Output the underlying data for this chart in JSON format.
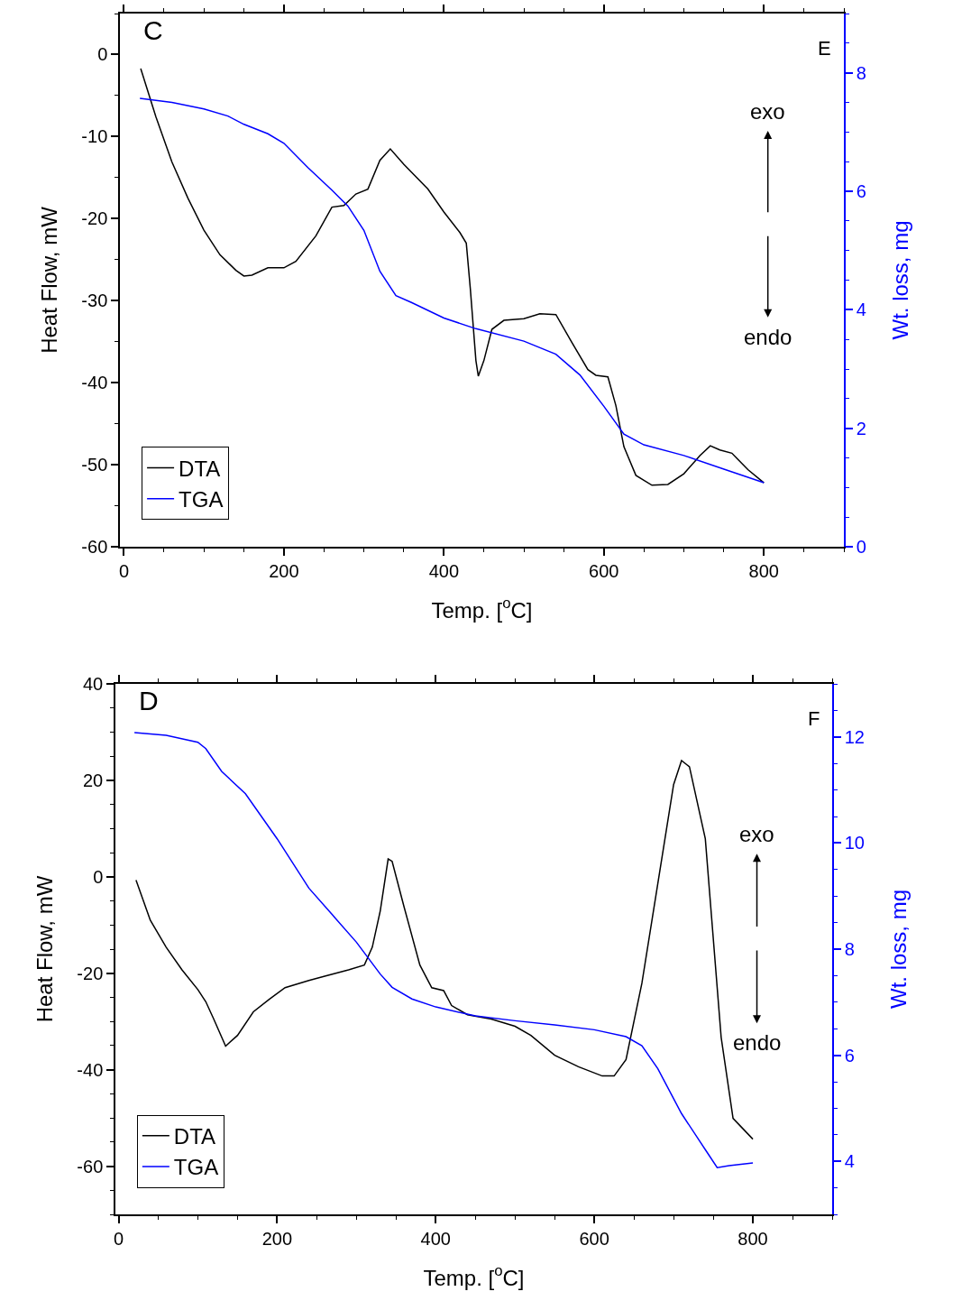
{
  "chart_data": [
    {
      "type": "line",
      "xlabel": "Temp. [$^{o}$C]",
      "ylabel": "Heat Flow, mW",
      "y2label": "Wt. loss, mg",
      "annotations": [
        "C",
        "E",
        "exo",
        "endo"
      ],
      "xlim": [
        -5,
        900
      ],
      "xticks": [
        0,
        200,
        400,
        600,
        800
      ],
      "ylim": [
        -60,
        5
      ],
      "yticks": [
        -60,
        -50,
        -40,
        -30,
        -20,
        -10,
        0
      ],
      "y2lim": [
        0,
        9
      ],
      "y2ticks": [
        0,
        2,
        4,
        6,
        8
      ],
      "legend": "bottom left",
      "grid": false,
      "series": [
        {
          "name": "DTA",
          "color": "#000000",
          "x": [
            21,
            40,
            60,
            80,
            100,
            120,
            140,
            150,
            160,
            180,
            200,
            215,
            240,
            260,
            275,
            290,
            305,
            320,
            333,
            350,
            380,
            400,
            420,
            428,
            433,
            440,
            443,
            450,
            460,
            475,
            500,
            520,
            540,
            560,
            580,
            590,
            605,
            615,
            625,
            640,
            660,
            680,
            700,
            720,
            733,
            745,
            760,
            780,
            800
          ],
          "values": [
            -1.7,
            -7.6,
            -13.1,
            -17.5,
            -21.4,
            -24.4,
            -26.3,
            -27,
            -26.9,
            -26,
            -26,
            -25.2,
            -22.1,
            -18.6,
            -18.4,
            -17,
            -16.4,
            -12.9,
            -11.5,
            -13.4,
            -16.4,
            -19.2,
            -21.7,
            -23,
            -28.5,
            -37.3,
            -39.2,
            -37.3,
            -33.5,
            -32.4,
            -32.2,
            -31.6,
            -31.7,
            -35.1,
            -38.4,
            -39.1,
            -39.3,
            -42.8,
            -47.8,
            -51.3,
            -52.5,
            -52.4,
            -51.1,
            -48.9,
            -47.7,
            -48.2,
            -48.6,
            -50.6,
            -52.2
          ]
        },
        {
          "name": "TGA",
          "color": "#0000ff",
          "axis": "y2",
          "x": [
            20,
            60,
            100,
            130,
            150,
            180,
            200,
            230,
            260,
            280,
            300,
            320,
            340,
            360,
            400,
            440,
            500,
            540,
            570,
            600,
            625,
            650,
            700,
            750,
            800
          ],
          "values": [
            7.57,
            7.5,
            7.39,
            7.27,
            7.13,
            6.97,
            6.81,
            6.4,
            6.02,
            5.75,
            5.34,
            4.65,
            4.24,
            4.12,
            3.86,
            3.68,
            3.47,
            3.25,
            2.9,
            2.37,
            1.9,
            1.72,
            1.54,
            1.31,
            1.08
          ]
        }
      ]
    },
    {
      "type": "line",
      "xlabel": "Temp. [$^{o}$C]",
      "ylabel": "Heat Flow, mW",
      "y2label": "Wt. loss, mg",
      "annotations": [
        "D",
        "F",
        "exo",
        "endo"
      ],
      "xlim": [
        -4,
        900
      ],
      "xticks": [
        0,
        200,
        400,
        600,
        800
      ],
      "ylim": [
        -70,
        40
      ],
      "yticks": [
        -60,
        -40,
        -20,
        0,
        20,
        40
      ],
      "y2lim": [
        3,
        13
      ],
      "y2ticks": [
        4,
        6,
        8,
        10,
        12
      ],
      "legend": "bottom left",
      "grid": false,
      "series": [
        {
          "name": "DTA",
          "color": "#000000",
          "x": [
            22,
            40,
            60,
            80,
            100,
            110,
            120,
            135,
            150,
            170,
            190,
            210,
            240,
            260,
            290,
            310,
            320,
            330,
            340,
            345,
            360,
            380,
            395,
            410,
            420,
            440,
            470,
            500,
            520,
            550,
            580,
            610,
            625,
            640,
            660,
            680,
            700,
            710,
            720,
            740,
            760,
            775,
            800
          ],
          "values": [
            -0.7,
            -9,
            -14.6,
            -19.3,
            -23.4,
            -25.9,
            -29.5,
            -35.1,
            -32.9,
            -28,
            -25.4,
            -23,
            -21.5,
            -20.6,
            -19.3,
            -18.3,
            -14.6,
            -7.1,
            3.7,
            3.2,
            -6.2,
            -18.3,
            -23,
            -23.6,
            -26.7,
            -28.6,
            -29.5,
            -31,
            -32.9,
            -37,
            -39.4,
            -41.3,
            -41.3,
            -37.9,
            -22.1,
            -1.5,
            19.1,
            24.1,
            22.8,
            7.9,
            -33.3,
            -50.1,
            -54.4
          ]
        },
        {
          "name": "TGA",
          "color": "#0000ff",
          "axis": "y2",
          "x": [
            20,
            60,
            100,
            110,
            130,
            160,
            200,
            240,
            270,
            300,
            330,
            345,
            370,
            400,
            450,
            500,
            550,
            600,
            640,
            660,
            680,
            710,
            740,
            755,
            770,
            800
          ],
          "values": [
            12.08,
            12.03,
            11.9,
            11.78,
            11.35,
            10.93,
            10.08,
            9.15,
            8.64,
            8.13,
            7.53,
            7.28,
            7.06,
            6.91,
            6.74,
            6.65,
            6.57,
            6.48,
            6.35,
            6.18,
            5.75,
            4.9,
            4.22,
            3.88,
            3.92,
            3.97
          ]
        }
      ]
    }
  ]
}
